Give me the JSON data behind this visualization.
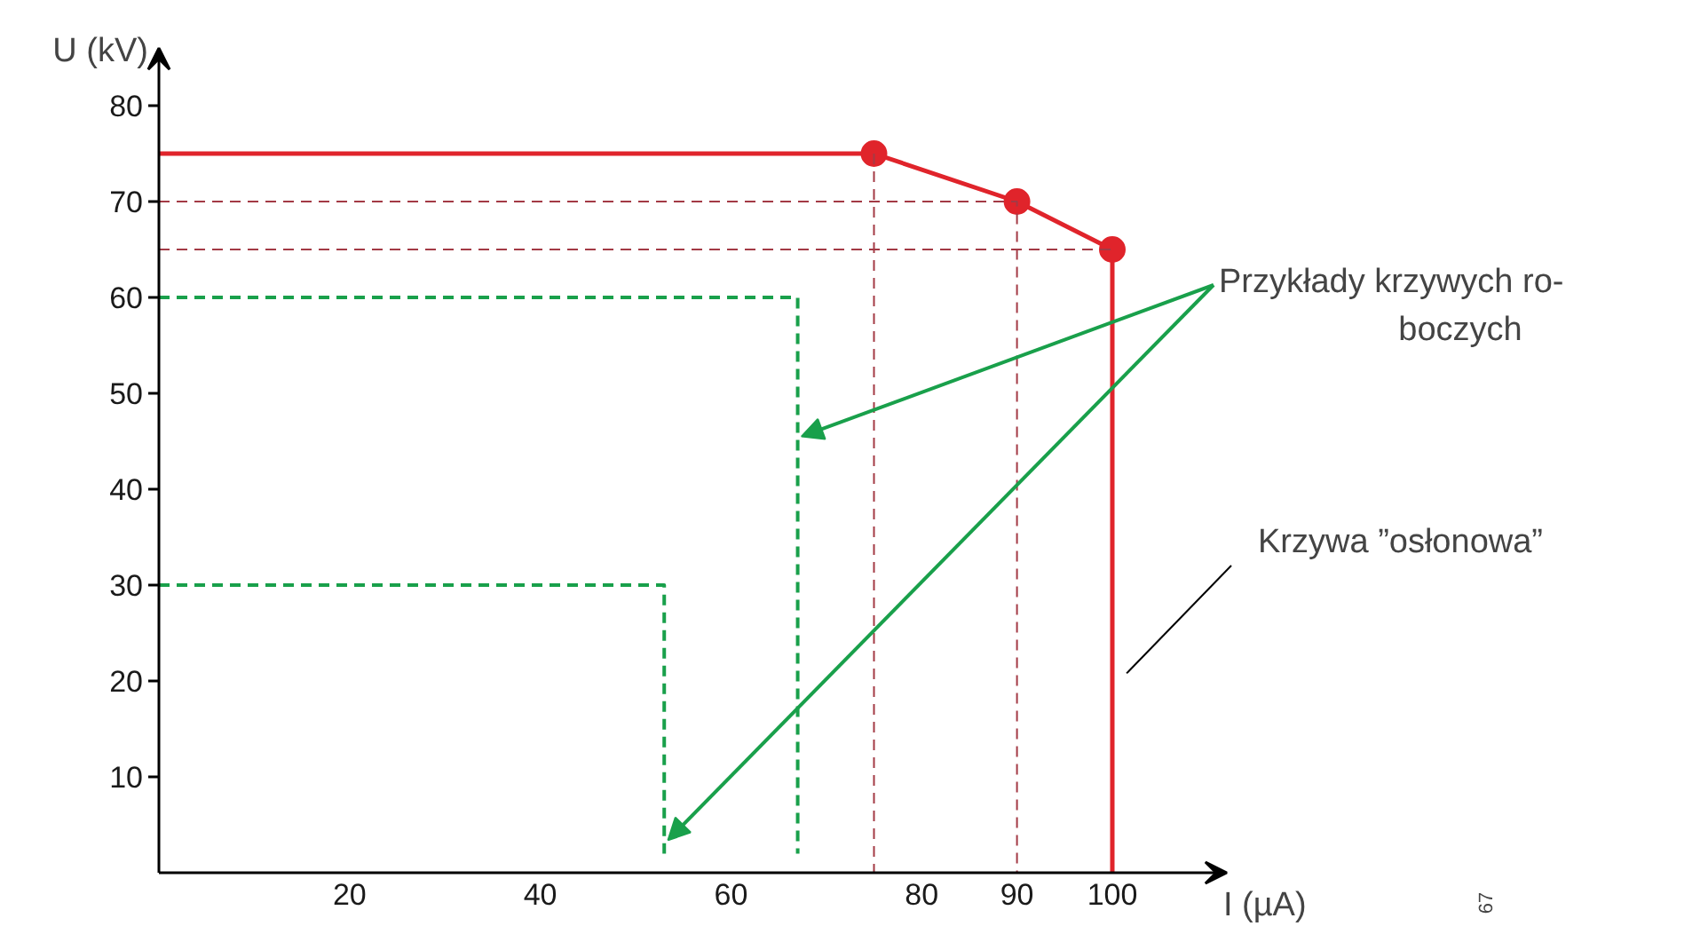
{
  "chart_data": {
    "type": "line",
    "xlabel": "I (µA)",
    "ylabel": "U (kV)",
    "xlim": [
      0,
      112
    ],
    "ylim": [
      0,
      86
    ],
    "xticks": [
      20,
      40,
      60,
      80,
      90,
      100
    ],
    "yticks": [
      10,
      20,
      30,
      40,
      50,
      60,
      70,
      80
    ],
    "grid": false,
    "annotations": [
      "Przykłady krzywych ro-\nboczych",
      "Krzywa ”osłonowa”",
      "67"
    ],
    "series": [
      {
        "color": "#e0242b",
        "line_style": "solid",
        "x": [
          0,
          75,
          90,
          100,
          100
        ],
        "values": [
          75,
          75,
          70,
          65,
          0
        ]
      },
      {
        "type": "scatter",
        "color": "#e0242b",
        "marker": "circle",
        "x": [
          75,
          90,
          100
        ],
        "values": [
          75,
          70,
          65
        ]
      },
      {
        "color": "#a33a45",
        "line_style": "dashed",
        "x": [
          0,
          90,
          90
        ],
        "values": [
          70,
          70,
          0
        ]
      },
      {
        "color": "#a33a45",
        "line_style": "dashed",
        "x": [
          0,
          100
        ],
        "values": [
          65,
          65
        ]
      },
      {
        "color": "#a33a45",
        "line_style": "dashed",
        "x": [
          75,
          75
        ],
        "values": [
          75,
          0
        ]
      },
      {
        "color": "#19a04b",
        "line_style": "dashed",
        "x": [
          0,
          67,
          67
        ],
        "values": [
          60,
          60,
          2
        ]
      },
      {
        "color": "#19a04b",
        "line_style": "dashed",
        "x": [
          0,
          53,
          53
        ],
        "values": [
          30,
          30,
          2
        ]
      }
    ]
  }
}
